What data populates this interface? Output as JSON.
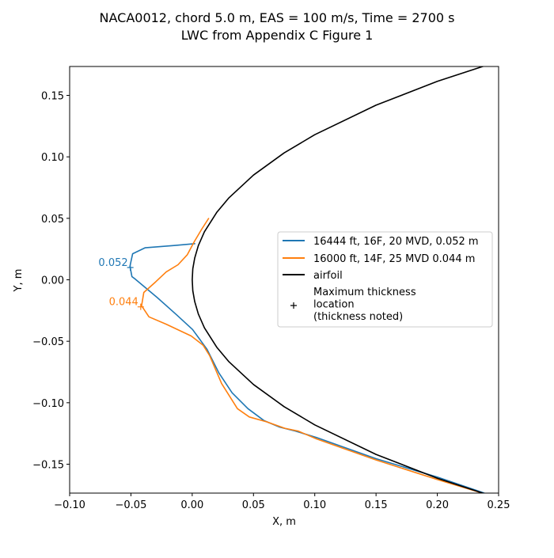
{
  "chart_data": {
    "type": "line",
    "title": [
      "NACA0012, chord 5.0 m, EAS = 100 m/s, Time = 2700 s",
      "LWC from Appendix C Figure 1"
    ],
    "xlabel": "X, m",
    "ylabel": "Y, m",
    "xlim": [
      -0.1,
      0.25
    ],
    "ylim": [
      -0.1735,
      0.1735
    ],
    "xticks": [
      -0.1,
      -0.05,
      0.0,
      0.05,
      0.1,
      0.15,
      0.2,
      0.25
    ],
    "xtick_labels": [
      "−0.10",
      "−0.05",
      "0.00",
      "0.05",
      "0.10",
      "0.15",
      "0.20",
      "0.25"
    ],
    "yticks": [
      -0.15,
      -0.1,
      -0.05,
      0.0,
      0.05,
      0.1,
      0.15
    ],
    "ytick_labels": [
      "−0.15",
      "−0.10",
      "−0.05",
      "0.00",
      "0.05",
      "0.10",
      "0.15"
    ],
    "grid": false,
    "legend_position": "center-right",
    "series": [
      {
        "name": "16444 ft, 16F, 20 MVD, 0.052 m",
        "color": "#1f77b4",
        "x": [
          0.0025,
          -0.0148,
          -0.0385,
          -0.0486,
          -0.0508,
          -0.0492,
          -0.0464,
          -0.0288,
          -0.0127,
          0.0003,
          0.0121,
          0.0218,
          0.0325,
          0.0455,
          0.0584,
          0.0713,
          0.0842,
          0.1014,
          0.15,
          0.2,
          0.2384
        ],
        "y": [
          0.0294,
          0.0279,
          0.026,
          0.0212,
          0.0111,
          0.0026,
          0.0005,
          -0.0142,
          -0.0285,
          -0.0404,
          -0.0565,
          -0.0758,
          -0.0919,
          -0.1048,
          -0.1144,
          -0.1198,
          -0.123,
          -0.1283,
          -0.1455,
          -0.1605,
          -0.1735
        ]
      },
      {
        "name": "16000 ft, 14F, 25 MVD 0.044 m",
        "color": "#ff7f0e",
        "x": [
          0.0136,
          0.0078,
          0.0014,
          -0.004,
          -0.0116,
          -0.0212,
          -0.0298,
          -0.0395,
          -0.0413,
          -0.0353,
          -0.0212,
          -0.0008,
          0.0089,
          0.0143,
          0.024,
          0.0369,
          0.0466,
          0.0606,
          0.0756,
          0.0864,
          0.1014,
          0.15,
          0.2,
          0.2384
        ],
        "y": [
          0.0502,
          0.0412,
          0.0305,
          0.0204,
          0.0122,
          0.0064,
          -0.0017,
          -0.0103,
          -0.0211,
          -0.0301,
          -0.0361,
          -0.0457,
          -0.0532,
          -0.0618,
          -0.0844,
          -0.1048,
          -0.1116,
          -0.1155,
          -0.1208,
          -0.123,
          -0.1294,
          -0.1465,
          -0.1625,
          -0.174
        ]
      },
      {
        "name": "airfoil",
        "color": "#000000",
        "x": [
          0.25,
          0.2,
          0.15,
          0.1,
          0.075,
          0.05,
          0.03,
          0.02,
          0.01,
          0.005,
          0.002,
          0.0005,
          0,
          0.0005,
          0.002,
          0.005,
          0.01,
          0.02,
          0.03,
          0.05,
          0.075,
          0.1,
          0.15,
          0.2,
          0.25
        ],
        "y": [
          0.17774,
          0.16139,
          0.14201,
          0.11799,
          0.10318,
          0.08518,
          0.06669,
          0.0548,
          0.03908,
          0.02779,
          0.01766,
          0.00887,
          0,
          -0.00887,
          -0.01766,
          -0.02779,
          -0.03908,
          -0.0548,
          -0.06669,
          -0.08518,
          -0.10318,
          -0.11799,
          -0.14201,
          -0.16139,
          -0.17774
        ]
      }
    ],
    "markers": [
      {
        "x": -0.0505,
        "y": 0.01,
        "label": "0.052",
        "color": "#1f77b4"
      },
      {
        "x": -0.042,
        "y": -0.022,
        "label": "0.044",
        "color": "#ff7f0e"
      }
    ],
    "marker_legend": "Maximum thickness\nlocation\n(thickness noted)"
  }
}
